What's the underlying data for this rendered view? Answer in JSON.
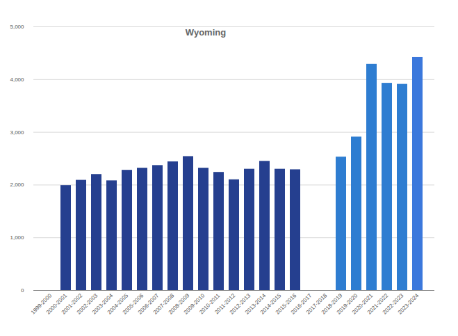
{
  "chart_data": {
    "type": "bar",
    "title": "Wyoming",
    "categories": [
      "1999-2000",
      "2000-2001",
      "2001-2002",
      "2002-2003",
      "2003-2004",
      "2004-2005",
      "2005-2006",
      "2006-2007",
      "2007-2008",
      "2008-2009",
      "2009-2010",
      "2010-2011",
      "2011-2012",
      "2012-2013",
      "2013-2014",
      "2014-2015",
      "2015-2016",
      "2016-2017",
      "2017-2018",
      "2018-2019",
      "2019-2020",
      "2020-2021",
      "2021-2022",
      "2022-2023",
      "2023-2024"
    ],
    "values": [
      null,
      1990,
      2090,
      2200,
      2080,
      2280,
      2320,
      2370,
      2440,
      2540,
      2320,
      2240,
      2100,
      2300,
      2450,
      2300,
      2290,
      null,
      null,
      2530,
      2910,
      4290,
      3930,
      3910,
      4420
    ],
    "colors": [
      "#253f8f",
      "#253f8f",
      "#253f8f",
      "#253f8f",
      "#253f8f",
      "#253f8f",
      "#253f8f",
      "#253f8f",
      "#253f8f",
      "#253f8f",
      "#253f8f",
      "#253f8f",
      "#253f8f",
      "#253f8f",
      "#253f8f",
      "#253f8f",
      "#253f8f",
      "#2e7dd1",
      "#2e7dd1",
      "#2e7dd1",
      "#2e7dd1",
      "#2e7dd1",
      "#2e7dd1",
      "#2e7dd1",
      "#3b78dc"
    ],
    "ylim": [
      0,
      5000
    ],
    "yticks": [
      0,
      1000,
      2000,
      3000,
      4000,
      5000
    ],
    "grid": true
  }
}
